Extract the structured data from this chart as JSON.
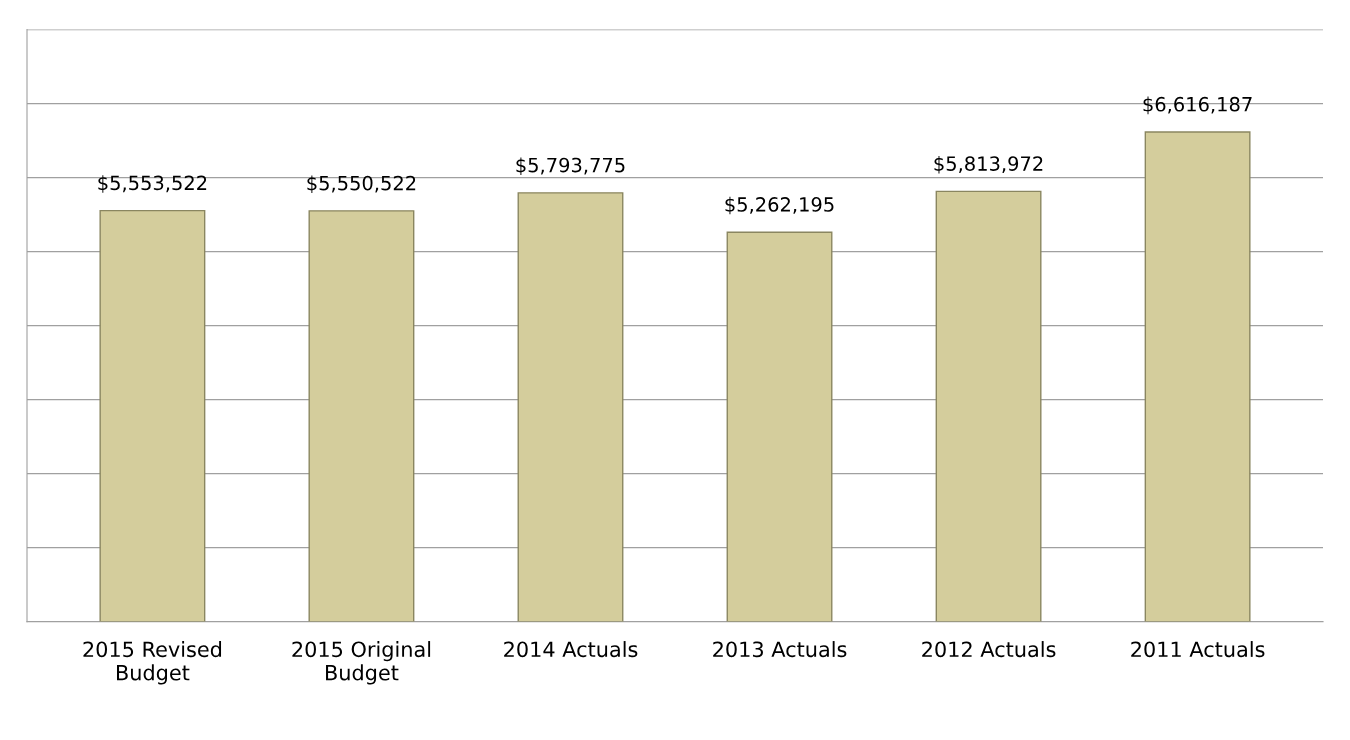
{
  "chart_data": {
    "type": "bar",
    "categories": [
      "2015 Revised\nBudget",
      "2015 Original\nBudget",
      "2014 Actuals",
      "2013 Actuals",
      "2012 Actuals",
      "2011 Actuals"
    ],
    "values": [
      5553522,
      5550522,
      5793775,
      5262195,
      5813972,
      6616187
    ],
    "value_labels": [
      "$5,553,522",
      "$5,550,522",
      "$5,793,775",
      "$5,262,195",
      "$5,813,972",
      "$6,616,187"
    ],
    "color": "#d4cd9c",
    "ylim": [
      0,
      8000000
    ],
    "yticks": [
      {
        "value": 0,
        "label": null
      },
      {
        "value": 1000000,
        "label": null
      },
      {
        "value": 2000000,
        "label": null
      },
      {
        "value": 3000000,
        "label": null
      },
      {
        "value": 4000000,
        "label": null
      },
      {
        "value": 5000000,
        "label": null
      },
      {
        "value": 6000000,
        "label": null
      },
      {
        "value": 7000000,
        "label": null
      },
      {
        "value": 8000000,
        "label": null
      }
    ],
    "grid": "y",
    "tick_labels": "x"
  }
}
